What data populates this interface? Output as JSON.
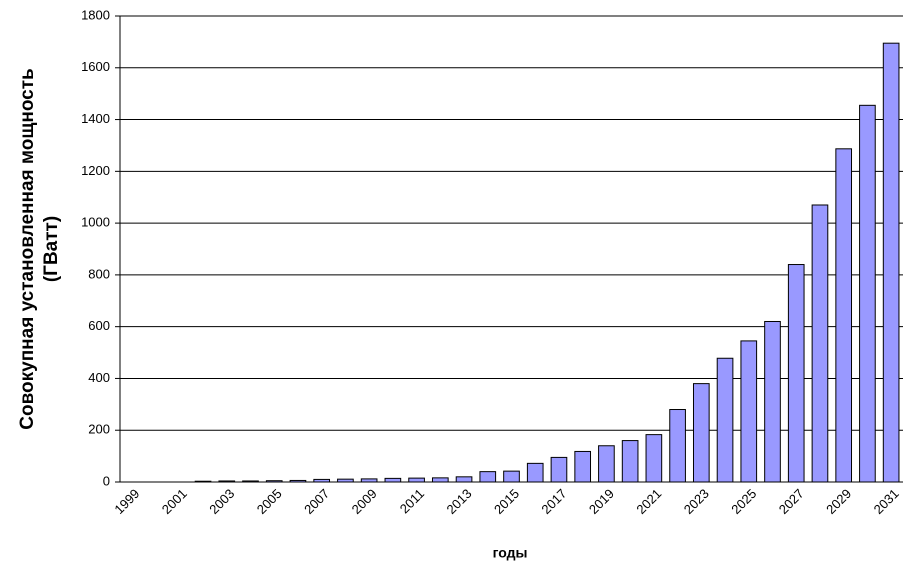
{
  "chart_data": {
    "type": "bar",
    "ylabel": [
      "Совокупная установленная мощность",
      "(ГВатт)"
    ],
    "xlabel": "годы",
    "categories": [
      "1999",
      null,
      "2001",
      null,
      "2003",
      null,
      "2005",
      null,
      "2007",
      null,
      "2009",
      null,
      "2011",
      null,
      "2013",
      null,
      "2015",
      null,
      "2017",
      null,
      "2019",
      null,
      "2021",
      null,
      "2023",
      null,
      "2025",
      null,
      "2027",
      null,
      "2029",
      null,
      "2031"
    ],
    "values": [
      0,
      0,
      0,
      3,
      4,
      4,
      5,
      6,
      10,
      11,
      12,
      14,
      15,
      16,
      20,
      40,
      42,
      72,
      95,
      118,
      140,
      160,
      183,
      280,
      380,
      478,
      545,
      620,
      840,
      1070,
      1287,
      1455,
      1695
    ],
    "color": "#9999ff",
    "ylim": [
      0,
      1800
    ],
    "yticks": [
      0,
      200,
      400,
      600,
      800,
      1000,
      1200,
      1400,
      1600,
      1800
    ],
    "grid": true
  }
}
